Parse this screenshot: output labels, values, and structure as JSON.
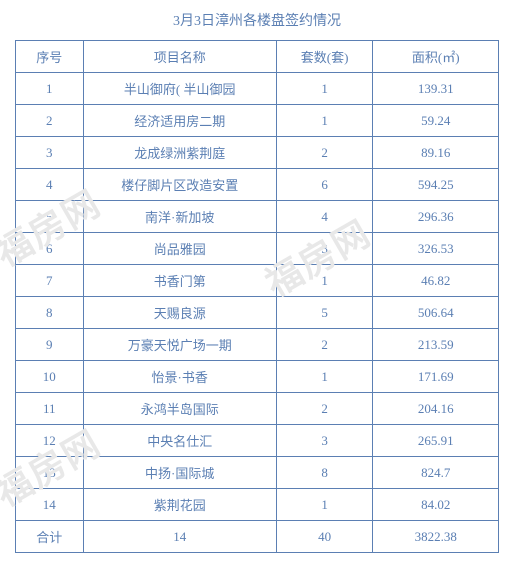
{
  "title": "3月3日漳州各楼盘签约情况",
  "watermark_text": "福房网",
  "columns": [
    {
      "label": "序号"
    },
    {
      "label": "项目名称"
    },
    {
      "label": "套数(套)"
    },
    {
      "label": "面积(㎡)"
    }
  ],
  "rows": [
    {
      "seq": "1",
      "name": "半山御府( 半山御园",
      "count": "1",
      "area": "139.31"
    },
    {
      "seq": "2",
      "name": "经济适用房二期",
      "count": "1",
      "area": "59.24"
    },
    {
      "seq": "3",
      "name": "龙成绿洲紫荆庭",
      "count": "2",
      "area": "89.16"
    },
    {
      "seq": "4",
      "name": "楼仔脚片区改造安置",
      "count": "6",
      "area": "594.25"
    },
    {
      "seq": "5",
      "name": "南洋·新加坡",
      "count": "4",
      "area": "296.36"
    },
    {
      "seq": "6",
      "name": "尚品雅园",
      "count": "3",
      "area": "326.53"
    },
    {
      "seq": "7",
      "name": "书香门第",
      "count": "1",
      "area": "46.82"
    },
    {
      "seq": "8",
      "name": "天赐良源",
      "count": "5",
      "area": "506.64"
    },
    {
      "seq": "9",
      "name": "万豪天悦广场一期",
      "count": "2",
      "area": "213.59"
    },
    {
      "seq": "10",
      "name": "怡景·书香",
      "count": "1",
      "area": "171.69"
    },
    {
      "seq": "11",
      "name": "永鸿半岛国际",
      "count": "2",
      "area": "204.16"
    },
    {
      "seq": "12",
      "name": "中央名仕汇",
      "count": "3",
      "area": "265.91"
    },
    {
      "seq": "13",
      "name": "中扬·国际城",
      "count": "8",
      "area": "824.7"
    },
    {
      "seq": "14",
      "name": "紫荆花园",
      "count": "1",
      "area": "84.02"
    }
  ],
  "total": {
    "seq": "合计",
    "name": "14",
    "count": "40",
    "area": "3822.38"
  },
  "styling": {
    "border_color": "#5b7fb3",
    "text_color": "#5b7fb3",
    "background_color": "#ffffff",
    "watermark_color": "#e8e8e8",
    "title_fontsize": 14,
    "cell_fontsize": 13,
    "watermark_fontsize": 36,
    "watermark_rotation": -30
  }
}
